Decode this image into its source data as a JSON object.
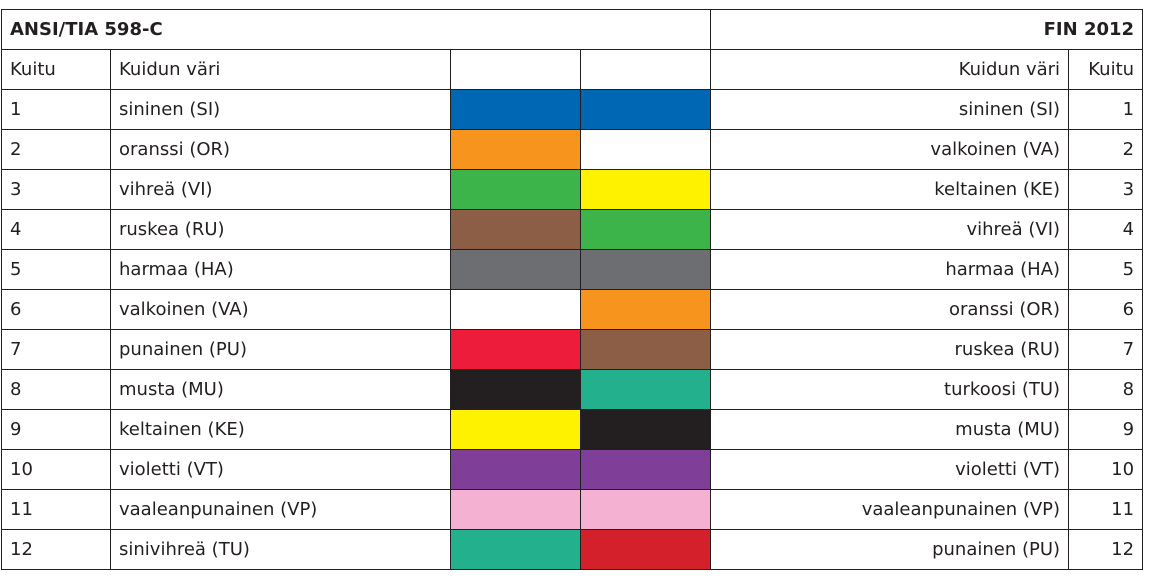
{
  "header": {
    "left_title": "ANSI/TIA 598-C",
    "right_title": "FIN 2012"
  },
  "columns": [
    "Kuitu",
    "Kuidun väri",
    "Kuidun väri",
    "Kuitu"
  ],
  "rows": [
    {
      "fiber": 1,
      "left_name": "sininen (SI)",
      "left_color": "#0067b4",
      "right_color": "#0067b4",
      "right_name": "sininen (SI)",
      "right_fiber": 1
    },
    {
      "fiber": 2,
      "left_name": "oranssi (OR)",
      "left_color": "#f7941d",
      "right_color": "#ffffff",
      "right_name": "valkoinen (VA)",
      "right_fiber": 2
    },
    {
      "fiber": 3,
      "left_name": "vihreä (VI)",
      "left_color": "#3cb44a",
      "right_color": "#fff200",
      "right_name": "keltainen (KE)",
      "right_fiber": 3
    },
    {
      "fiber": 4,
      "left_name": "ruskea (RU)",
      "left_color": "#8b5e45",
      "right_color": "#3cb44a",
      "right_name": "vihreä (VI)",
      "right_fiber": 4
    },
    {
      "fiber": 5,
      "left_name": "harmaa (HA)",
      "left_color": "#6d6e71",
      "right_color": "#6d6e71",
      "right_name": "harmaa (HA)",
      "right_fiber": 5
    },
    {
      "fiber": 6,
      "left_name": "valkoinen (VA)",
      "left_color": "#ffffff",
      "right_color": "#f7941d",
      "right_name": "oranssi (OR)",
      "right_fiber": 6
    },
    {
      "fiber": 7,
      "left_name": "punainen (PU)",
      "left_color": "#ed1c3a",
      "right_color": "#8b5e45",
      "right_name": "ruskea (RU)",
      "right_fiber": 7
    },
    {
      "fiber": 8,
      "left_name": "musta (MU)",
      "left_color": "#231f20",
      "right_color": "#23b08c",
      "right_name": "turkoosi (TU)",
      "right_fiber": 8
    },
    {
      "fiber": 9,
      "left_name": "keltainen (KE)",
      "left_color": "#fff200",
      "right_color": "#231f20",
      "right_name": "musta (MU)",
      "right_fiber": 9
    },
    {
      "fiber": 10,
      "left_name": "violetti (VT)",
      "left_color": "#7f3f98",
      "right_color": "#7f3f98",
      "right_name": "violetti (VT)",
      "right_fiber": 10
    },
    {
      "fiber": 11,
      "left_name": "vaaleanpunainen (VP)",
      "left_color": "#f4b1d1",
      "right_color": "#f4b1d1",
      "right_name": "vaaleanpunainen (VP)",
      "right_fiber": 11
    },
    {
      "fiber": 12,
      "left_name": "sinivihreä (TU)",
      "left_color": "#23b08c",
      "right_color": "#d4202a",
      "right_name": "punainen (PU)",
      "right_fiber": 12
    }
  ]
}
